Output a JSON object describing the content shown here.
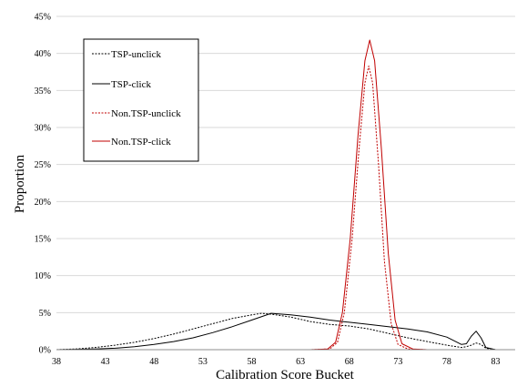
{
  "chart_data": {
    "type": "line",
    "xlabel": "Calibration Score Bucket",
    "ylabel": "Proportion",
    "xlim": [
      38,
      85
    ],
    "ylim": [
      0,
      0.45
    ],
    "x_ticks": [
      38,
      43,
      48,
      53,
      58,
      63,
      68,
      73,
      78,
      83
    ],
    "y_ticks": [
      "0%",
      "5%",
      "10%",
      "15%",
      "20%",
      "25%",
      "30%",
      "35%",
      "40%",
      "45%"
    ],
    "grid": "horizontal",
    "legend_position": "top-left",
    "series": [
      {
        "name": "TSP-unclick",
        "color": "#000000",
        "style": "dashed",
        "points": [
          [
            38,
            0
          ],
          [
            40,
            0.001
          ],
          [
            42,
            0.003
          ],
          [
            44,
            0.006
          ],
          [
            46,
            0.01
          ],
          [
            48,
            0.015
          ],
          [
            50,
            0.021
          ],
          [
            52,
            0.028
          ],
          [
            54,
            0.035
          ],
          [
            56,
            0.042
          ],
          [
            58,
            0.047
          ],
          [
            59,
            0.049
          ],
          [
            60,
            0.048
          ],
          [
            62,
            0.044
          ],
          [
            64,
            0.038
          ],
          [
            66,
            0.034
          ],
          [
            68,
            0.032
          ],
          [
            70,
            0.028
          ],
          [
            72,
            0.022
          ],
          [
            74,
            0.016
          ],
          [
            76,
            0.011
          ],
          [
            78,
            0.006
          ],
          [
            79.5,
            0.003
          ],
          [
            80,
            0.004
          ],
          [
            80.5,
            0.006
          ],
          [
            81,
            0.009
          ],
          [
            81.5,
            0.007
          ],
          [
            82,
            0.002
          ],
          [
            83,
            0
          ],
          [
            85,
            0
          ]
        ]
      },
      {
        "name": "TSP-click",
        "color": "#000000",
        "style": "solid",
        "points": [
          [
            38,
            0
          ],
          [
            40,
            0.0005
          ],
          [
            42,
            0.001
          ],
          [
            44,
            0.002
          ],
          [
            46,
            0.004
          ],
          [
            48,
            0.007
          ],
          [
            50,
            0.011
          ],
          [
            52,
            0.016
          ],
          [
            54,
            0.023
          ],
          [
            56,
            0.031
          ],
          [
            58,
            0.04
          ],
          [
            60,
            0.049
          ],
          [
            62,
            0.047
          ],
          [
            64,
            0.044
          ],
          [
            66,
            0.04
          ],
          [
            68,
            0.037
          ],
          [
            70,
            0.034
          ],
          [
            72,
            0.031
          ],
          [
            74,
            0.028
          ],
          [
            76,
            0.024
          ],
          [
            78,
            0.017
          ],
          [
            79.5,
            0.007
          ],
          [
            80,
            0.008
          ],
          [
            80.5,
            0.018
          ],
          [
            81,
            0.025
          ],
          [
            81.5,
            0.016
          ],
          [
            82,
            0.003
          ],
          [
            83,
            0
          ],
          [
            85,
            0
          ]
        ]
      },
      {
        "name": "Non.TSP-unclick",
        "color": "#c00000",
        "style": "dashed",
        "points": [
          [
            38,
            0
          ],
          [
            64,
            0
          ],
          [
            66,
            0.001
          ],
          [
            66.8,
            0.01
          ],
          [
            67.5,
            0.05
          ],
          [
            68.3,
            0.15
          ],
          [
            69,
            0.27
          ],
          [
            69.6,
            0.36
          ],
          [
            70,
            0.383
          ],
          [
            70.4,
            0.36
          ],
          [
            71,
            0.25
          ],
          [
            71.6,
            0.12
          ],
          [
            72.3,
            0.035
          ],
          [
            73,
            0.007
          ],
          [
            74,
            0.001
          ],
          [
            76,
            0
          ],
          [
            85,
            0
          ]
        ]
      },
      {
        "name": "Non.TSP-click",
        "color": "#c00000",
        "style": "solid",
        "points": [
          [
            38,
            0
          ],
          [
            64,
            0
          ],
          [
            65.8,
            0.001
          ],
          [
            66.6,
            0.01
          ],
          [
            67.3,
            0.05
          ],
          [
            68.1,
            0.15
          ],
          [
            68.9,
            0.29
          ],
          [
            69.6,
            0.39
          ],
          [
            70.1,
            0.418
          ],
          [
            70.6,
            0.39
          ],
          [
            71.3,
            0.27
          ],
          [
            72,
            0.13
          ],
          [
            72.7,
            0.04
          ],
          [
            73.4,
            0.008
          ],
          [
            74.5,
            0.001
          ],
          [
            76,
            0
          ],
          [
            85,
            0
          ]
        ]
      }
    ]
  }
}
